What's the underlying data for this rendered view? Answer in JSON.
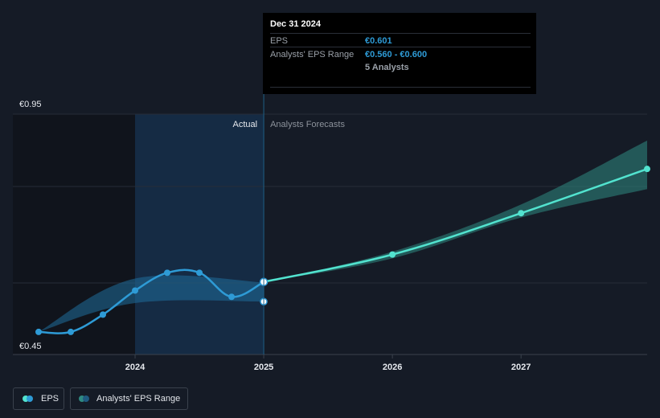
{
  "chart_data": {
    "type": "line",
    "xlim": [
      2023.25,
      2027.98
    ],
    "ylim": [
      0.45,
      0.95
    ],
    "y_ticks": [
      {
        "value": 0.95,
        "label": "€0.95"
      },
      {
        "value": 0.45,
        "label": "€0.45"
      }
    ],
    "x_ticks": [
      {
        "value": 2024,
        "label": "2024"
      },
      {
        "value": 2025,
        "label": "2025"
      },
      {
        "value": 2026,
        "label": "2026"
      },
      {
        "value": 2027,
        "label": "2027"
      }
    ],
    "divider_x": 2025.0,
    "actual_label": "Actual",
    "forecast_label": "Analysts Forecasts",
    "series": [
      {
        "name": "EPS",
        "color": "#2e9bd6",
        "x": [
          2023.25,
          2023.5,
          2023.75,
          2024.0,
          2024.25,
          2024.5,
          2024.75,
          2025.0
        ],
        "y": [
          0.497,
          0.497,
          0.533,
          0.583,
          0.62,
          0.62,
          0.57,
          0.601
        ]
      },
      {
        "name": "EPS",
        "color": "#52e3cf",
        "x": [
          2025.0,
          2026.0,
          2027.0,
          2027.98
        ],
        "y": [
          0.601,
          0.658,
          0.744,
          0.836
        ]
      },
      {
        "name": "Analysts' EPS Range",
        "color": "#1f6e9c",
        "x": [
          2023.25,
          2024.0,
          2025.0
        ],
        "low": [
          0.497,
          0.557,
          0.56
        ],
        "high": [
          0.497,
          0.608,
          0.6
        ]
      },
      {
        "name": "Analysts' EPS Range",
        "color": "#2f8a82",
        "x": [
          2025.0,
          2026.0,
          2027.0,
          2027.98
        ],
        "low": [
          0.601,
          0.65,
          0.735,
          0.794
        ],
        "high": [
          0.601,
          0.664,
          0.762,
          0.895
        ]
      }
    ],
    "highlight": {
      "x": 2025.0,
      "eps": 0.601,
      "low": 0.56
    }
  },
  "tooltip": {
    "date": "Dec 31 2024",
    "eps_label": "EPS",
    "eps_value": "€0.601",
    "range_label": "Analysts' EPS Range",
    "range_value": "€0.560 - €0.600",
    "analysts": "5 Analysts"
  },
  "legend": {
    "eps_label": "EPS",
    "range_label": "Analysts' EPS Range"
  },
  "colors": {
    "background": "#151b26",
    "eps_actual": "#2e9bd6",
    "eps_forecast": "#52e3cf",
    "range_actual": "#1f6e9c",
    "range_forecast": "#2f8a82"
  }
}
